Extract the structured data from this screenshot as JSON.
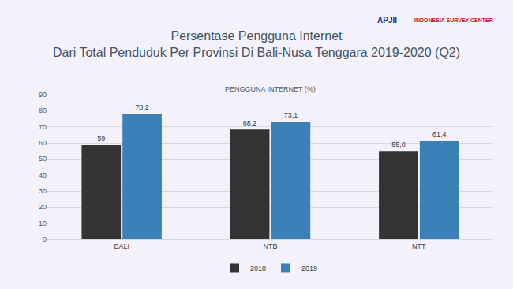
{
  "chart_data": {
    "type": "bar",
    "title": "Persentase Pengguna Internet\nDari Total Penduduk Per Provinsi Di Bali-Nusa Tenggara 2019-2020 (Q2)",
    "subtitle": "PENGGUNA INTERNET (%)",
    "annotations": [
      "APJII",
      "INDONESIA SURVEY CENTER"
    ],
    "categories": [
      "BALI",
      "NTB",
      "NTT"
    ],
    "series": [
      {
        "name": "2018",
        "color": "#333333",
        "values": [
          59,
          68.2,
          55.0
        ],
        "value_labels": [
          "59",
          "68,2",
          "55,0"
        ]
      },
      {
        "name": "2019",
        "color": "#3b80b8",
        "values": [
          78.2,
          73.1,
          61.4
        ],
        "value_labels": [
          "78,2",
          "73,1",
          "61,4"
        ]
      }
    ],
    "ylim": [
      0,
      90
    ],
    "yticks": [
      0,
      10,
      20,
      30,
      40,
      50,
      60,
      70,
      80,
      90
    ],
    "grid": true,
    "legend": "bottom",
    "data_labels": true
  }
}
